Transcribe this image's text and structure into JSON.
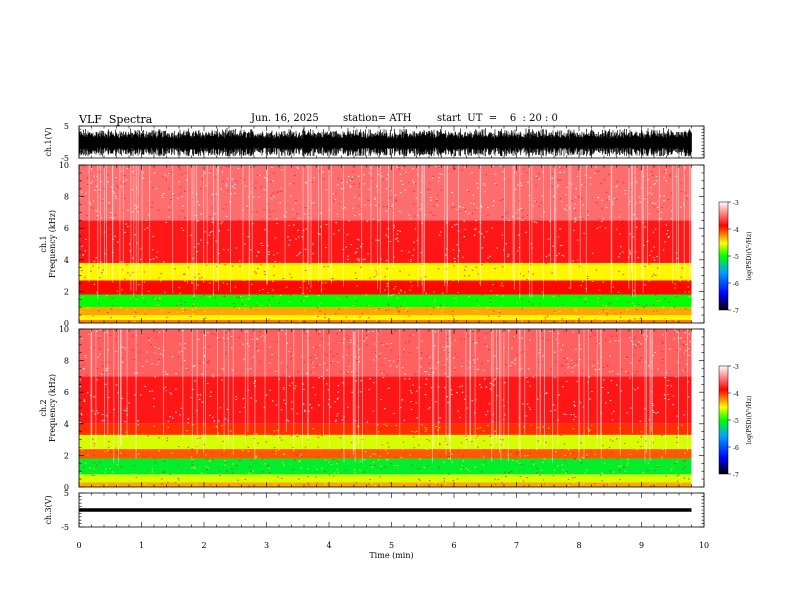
{
  "header": {
    "title": "VLF  Spectra",
    "date": "Jun. 16, 2025",
    "station": "station= ATH",
    "start": "start  UT  =    6  : 20 : 0"
  },
  "chart_data": [
    {
      "type": "line",
      "panel": "ch1-waveform",
      "ylabel": "ch.1(V)",
      "ylim": [
        -5,
        5
      ],
      "yticks": [
        "5",
        "-5"
      ],
      "xlim": [
        0,
        10
      ],
      "data_extent_x": [
        0,
        9.8
      ],
      "series": [
        {
          "amplitude_range": [
            -5,
            5
          ]
        }
      ]
    },
    {
      "type": "heatmap",
      "panel": "ch1-spectrogram",
      "ylabel": "ch.1\nFrequency  (kHz)",
      "ylim": [
        0,
        10
      ],
      "yticks": [
        "0",
        "2",
        "4",
        "6",
        "8",
        "10"
      ],
      "xlim": [
        0,
        10
      ],
      "data_extent_x": [
        0,
        9.8
      ],
      "colorbar": {
        "label": "log(PSD)(V²/Hz)",
        "range": [
          -7,
          -3
        ],
        "ticks": [
          "-3",
          "-4",
          "-5",
          "-6",
          "-7"
        ]
      },
      "bands": [
        {
          "f_min": 0,
          "f_max": 0.2,
          "level": -4.2
        },
        {
          "f_min": 0.2,
          "f_max": 0.5,
          "level": -4.5
        },
        {
          "f_min": 0.5,
          "f_max": 1.0,
          "level": -4.3
        },
        {
          "f_min": 1.0,
          "f_max": 1.8,
          "level": -5.0
        },
        {
          "f_min": 1.8,
          "f_max": 2.7,
          "level": -3.9
        },
        {
          "f_min": 2.7,
          "f_max": 3.8,
          "level": -4.5
        },
        {
          "f_min": 3.8,
          "f_max": 6.5,
          "level": -3.8
        },
        {
          "f_min": 6.5,
          "f_max": 10.0,
          "level": -3.5
        }
      ]
    },
    {
      "type": "heatmap",
      "panel": "ch2-spectrogram",
      "ylabel": "ch.2\nFrequency  (kHz)",
      "ylim": [
        0,
        10
      ],
      "yticks": [
        "0",
        "2",
        "4",
        "6",
        "8",
        "10"
      ],
      "xlim": [
        0,
        10
      ],
      "data_extent_x": [
        0,
        9.8
      ],
      "colorbar": {
        "label": "log(PSD)(V²/Hz)",
        "range": [
          -7,
          -3
        ],
        "ticks": [
          "-3",
          "-4",
          "-5",
          "-6",
          "-7"
        ]
      },
      "bands": [
        {
          "f_min": 0,
          "f_max": 0.3,
          "level": -4.3
        },
        {
          "f_min": 0.3,
          "f_max": 0.8,
          "level": -4.6
        },
        {
          "f_min": 0.8,
          "f_max": 1.8,
          "level": -5.1
        },
        {
          "f_min": 1.8,
          "f_max": 2.4,
          "level": -4.1
        },
        {
          "f_min": 2.4,
          "f_max": 3.3,
          "level": -4.6
        },
        {
          "f_min": 3.3,
          "f_max": 4.0,
          "level": -4.0
        },
        {
          "f_min": 4.0,
          "f_max": 7.0,
          "level": -3.8
        },
        {
          "f_min": 7.0,
          "f_max": 10.0,
          "level": -3.55
        }
      ]
    },
    {
      "type": "line",
      "panel": "ch3-waveform",
      "ylabel": "ch.3(V)",
      "ylim": [
        -5,
        5
      ],
      "yticks": [
        "5",
        "-5"
      ],
      "xlim": [
        0,
        10
      ],
      "data_extent_x": [
        0,
        9.8
      ],
      "series": [
        {
          "level": 0
        }
      ]
    }
  ],
  "xaxis": {
    "label": "Time  (min)",
    "ticks": [
      "0",
      "1",
      "2",
      "3",
      "4",
      "5",
      "6",
      "7",
      "8",
      "9",
      "10"
    ]
  },
  "colors": {
    "scale": [
      "#000000",
      "#0000ff",
      "#00a0ff",
      "#00ff00",
      "#ffff00",
      "#ff0000",
      "#ffffff"
    ]
  }
}
